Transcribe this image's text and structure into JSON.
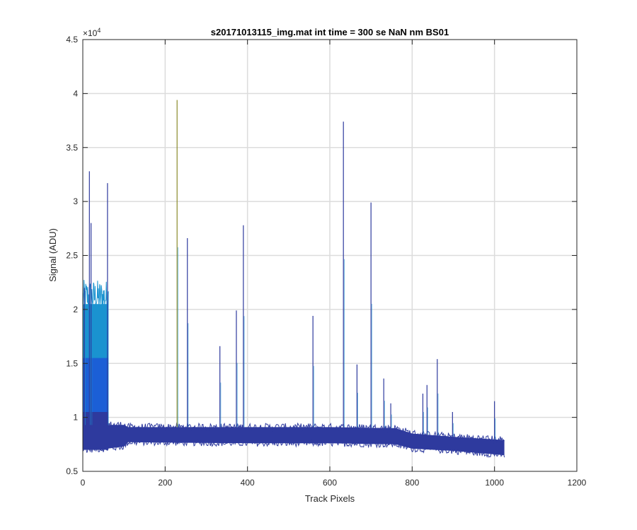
{
  "chart_data": {
    "type": "line",
    "title": "s20171013115_img.mat int time = 300 se  NaN nm BS01",
    "xlabel": "Track Pixels",
    "ylabel": "Signal (ADU)",
    "xlim": [
      0,
      1200
    ],
    "ylim": [
      5000,
      45000
    ],
    "xticks": [
      0,
      200,
      400,
      600,
      800,
      1000,
      1200
    ],
    "xtick_labels": [
      "0",
      "200",
      "400",
      "600",
      "800",
      "1000",
      "1200"
    ],
    "yticks": [
      5000,
      10000,
      15000,
      20000,
      25000,
      30000,
      35000,
      40000,
      45000
    ],
    "ytick_labels": [
      "0.5",
      "1",
      "1.5",
      "2",
      "2.5",
      "3",
      "3.5",
      "4",
      "4.5"
    ],
    "y_exponent_label": "×10",
    "y_exponent_power": "4",
    "grid": true,
    "colors": {
      "band_main": "#2e3a9e",
      "band_mid": "#1b5fd6",
      "band_light": "#1a93d0",
      "spike_olive": "#8a8a2a"
    },
    "baseline_band": [
      {
        "x": 0,
        "lo": 7000,
        "hi": 9300
      },
      {
        "x": 60,
        "lo": 7100,
        "hi": 9300
      },
      {
        "x": 100,
        "lo": 7300,
        "hi": 9300
      },
      {
        "x": 110,
        "lo": 7700,
        "hi": 9100
      },
      {
        "x": 400,
        "lo": 7600,
        "hi": 9100
      },
      {
        "x": 600,
        "lo": 7600,
        "hi": 9100
      },
      {
        "x": 760,
        "lo": 7500,
        "hi": 9000
      },
      {
        "x": 800,
        "lo": 7100,
        "hi": 8500
      },
      {
        "x": 900,
        "lo": 6900,
        "hi": 8200
      },
      {
        "x": 1024,
        "lo": 6500,
        "hi": 7900
      }
    ],
    "high_region": {
      "x_range": [
        0,
        62
      ],
      "light_top": 20500,
      "mid_top": 15500,
      "dark_top": 10500
    },
    "spikes": [
      {
        "x": 4,
        "y": 22000
      },
      {
        "x": 16,
        "y": 32800
      },
      {
        "x": 20,
        "y": 28000
      },
      {
        "x": 60,
        "y": 31700
      },
      {
        "x": 229,
        "y": 39400,
        "color": "olive"
      },
      {
        "x": 254,
        "y": 26600
      },
      {
        "x": 333,
        "y": 16600
      },
      {
        "x": 373,
        "y": 19900
      },
      {
        "x": 390,
        "y": 27800
      },
      {
        "x": 559,
        "y": 19400
      },
      {
        "x": 633,
        "y": 37400
      },
      {
        "x": 666,
        "y": 14900
      },
      {
        "x": 700,
        "y": 29900
      },
      {
        "x": 731,
        "y": 13600
      },
      {
        "x": 748,
        "y": 11300
      },
      {
        "x": 826,
        "y": 12200
      },
      {
        "x": 836,
        "y": 13000
      },
      {
        "x": 861,
        "y": 15400
      },
      {
        "x": 898,
        "y": 10500
      },
      {
        "x": 1000,
        "y": 11500
      }
    ]
  }
}
